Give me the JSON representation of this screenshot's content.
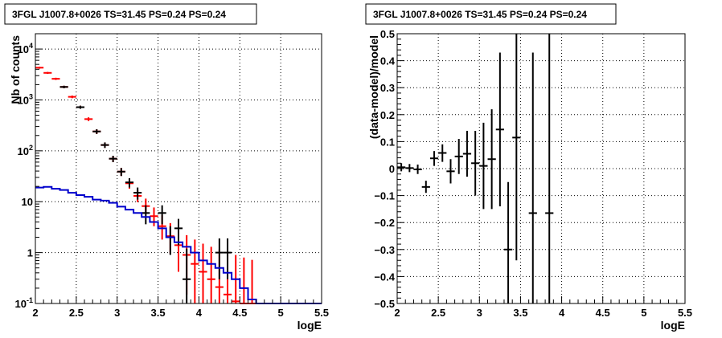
{
  "chart_data": [
    {
      "type": "line",
      "title": "3FGL J1007.8+0026 TS=31.45 PS=0.24 PS=0.24",
      "xlabel": "logE",
      "ylabel": "Nb of counts",
      "xlim": [
        2,
        5.5
      ],
      "ylim": [
        0.1,
        20000
      ],
      "log_y": true,
      "grid": true,
      "x_ticks": [
        "2",
        "2.5",
        "3",
        "3.5",
        "4",
        "4.5",
        "5",
        "5.5"
      ],
      "y_ticks": [
        {
          "value": 0.1,
          "label": "10^-1"
        },
        {
          "value": 1,
          "label": "1"
        },
        {
          "value": 10,
          "label": "10"
        },
        {
          "value": 100,
          "label": "10^2"
        },
        {
          "value": 1000,
          "label": "10^3"
        },
        {
          "value": 10000,
          "label": "10^4"
        }
      ],
      "series": [
        {
          "color": "#ff0000",
          "kind": "errorbar",
          "points": [
            {
              "x": 2.05,
              "y": 4300,
              "lo": 4100,
              "hi": 4500
            },
            {
              "x": 2.15,
              "y": 3400,
              "lo": 3250,
              "hi": 3550
            },
            {
              "x": 2.25,
              "y": 2600,
              "lo": 2470,
              "hi": 2730
            },
            {
              "x": 2.35,
              "y": 1800,
              "lo": 1700,
              "hi": 1900
            },
            {
              "x": 2.45,
              "y": 1150,
              "lo": 1080,
              "hi": 1220
            },
            {
              "x": 2.55,
              "y": 720,
              "lo": 670,
              "hi": 770
            },
            {
              "x": 2.65,
              "y": 420,
              "lo": 385,
              "hi": 455
            },
            {
              "x": 2.75,
              "y": 240,
              "lo": 215,
              "hi": 265
            },
            {
              "x": 2.85,
              "y": 130,
              "lo": 114,
              "hi": 146
            },
            {
              "x": 2.95,
              "y": 70,
              "lo": 60,
              "hi": 80
            },
            {
              "x": 3.05,
              "y": 39,
              "lo": 32,
              "hi": 46
            },
            {
              "x": 3.15,
              "y": 23,
              "lo": 18,
              "hi": 28
            },
            {
              "x": 3.25,
              "y": 13,
              "lo": 9.8,
              "hi": 17
            },
            {
              "x": 3.35,
              "y": 8.2,
              "lo": 5.8,
              "hi": 11.5
            },
            {
              "x": 3.45,
              "y": 5.2,
              "lo": 3.3,
              "hi": 7.7
            },
            {
              "x": 3.55,
              "y": 3.3,
              "lo": 1.8,
              "hi": 5.4
            },
            {
              "x": 3.65,
              "y": 2.1,
              "lo": 0.95,
              "hi": 3.8
            },
            {
              "x": 3.75,
              "y": 1.4,
              "lo": 0.42,
              "hi": 2.8
            },
            {
              "x": 3.85,
              "y": 0.9,
              "lo": 0.15,
              "hi": 2.2
            },
            {
              "x": 3.95,
              "y": 0.6,
              "lo": 0.1,
              "hi": 1.8
            },
            {
              "x": 4.05,
              "y": 0.42,
              "lo": 0.1,
              "hi": 1.5
            },
            {
              "x": 4.15,
              "y": 0.3,
              "lo": 0.1,
              "hi": 1.3
            },
            {
              "x": 4.25,
              "y": 0.21,
              "lo": 0.1,
              "hi": 1.15
            },
            {
              "x": 4.35,
              "y": 0.15,
              "lo": 0.1,
              "hi": 1.0
            },
            {
              "x": 4.45,
              "y": 0.11,
              "lo": 0.1,
              "hi": 0.9
            },
            {
              "x": 4.55,
              "y": 0.1,
              "lo": 0.1,
              "hi": 0.8
            },
            {
              "x": 4.65,
              "y": 0.1,
              "lo": 0.1,
              "hi": 0.72
            }
          ]
        },
        {
          "color": "#000000",
          "kind": "errorbar",
          "points": [
            {
              "x": 2.35,
              "y": 1800,
              "lo": 1700,
              "hi": 1900
            },
            {
              "x": 2.55,
              "y": 720,
              "lo": 670,
              "hi": 770
            },
            {
              "x": 2.75,
              "y": 240,
              "lo": 215,
              "hi": 265
            },
            {
              "x": 2.85,
              "y": 130,
              "lo": 114,
              "hi": 146
            },
            {
              "x": 2.95,
              "y": 70,
              "lo": 60,
              "hi": 80
            },
            {
              "x": 3.05,
              "y": 39,
              "lo": 32,
              "hi": 46
            },
            {
              "x": 3.15,
              "y": 24,
              "lo": 19,
              "hi": 29
            },
            {
              "x": 3.25,
              "y": 15,
              "lo": 11,
              "hi": 19
            },
            {
              "x": 3.35,
              "y": 6,
              "lo": 3.6,
              "hi": 8.5
            },
            {
              "x": 3.55,
              "y": 6,
              "lo": 3.6,
              "hi": 8.5
            },
            {
              "x": 3.65,
              "y": 2,
              "lo": 0.9,
              "hi": 3.3
            },
            {
              "x": 3.75,
              "y": 3,
              "lo": 1.4,
              "hi": 4.6
            },
            {
              "x": 3.85,
              "y": 0.3,
              "lo": 0.1,
              "hi": 1.2
            },
            {
              "x": 4.25,
              "y": 1,
              "lo": 0.3,
              "hi": 1.9
            },
            {
              "x": 4.35,
              "y": 1,
              "lo": 0.3,
              "hi": 1.9
            }
          ]
        },
        {
          "color": "#0000cc",
          "kind": "step",
          "points": [
            {
              "x": 2.05,
              "y": 19
            },
            {
              "x": 2.15,
              "y": 19.5
            },
            {
              "x": 2.25,
              "y": 18
            },
            {
              "x": 2.35,
              "y": 17
            },
            {
              "x": 2.45,
              "y": 15
            },
            {
              "x": 2.55,
              "y": 13.5
            },
            {
              "x": 2.65,
              "y": 12.5
            },
            {
              "x": 2.75,
              "y": 11
            },
            {
              "x": 2.85,
              "y": 10.5
            },
            {
              "x": 2.95,
              "y": 9.5
            },
            {
              "x": 3.05,
              "y": 8
            },
            {
              "x": 3.15,
              "y": 7
            },
            {
              "x": 3.25,
              "y": 6
            },
            {
              "x": 3.35,
              "y": 5
            },
            {
              "x": 3.45,
              "y": 4
            },
            {
              "x": 3.55,
              "y": 3
            },
            {
              "x": 3.65,
              "y": 2
            },
            {
              "x": 3.75,
              "y": 1.6
            },
            {
              "x": 3.85,
              "y": 1.3
            },
            {
              "x": 3.95,
              "y": 1.0
            },
            {
              "x": 4.05,
              "y": 0.7
            },
            {
              "x": 4.15,
              "y": 0.6
            },
            {
              "x": 4.25,
              "y": 0.5
            },
            {
              "x": 4.35,
              "y": 0.4
            },
            {
              "x": 4.45,
              "y": 0.3
            },
            {
              "x": 4.55,
              "y": 0.2
            },
            {
              "x": 4.65,
              "y": 0.12
            },
            {
              "x": 4.75,
              "y": 0.1
            },
            {
              "x": 4.85,
              "y": 0.1
            },
            {
              "x": 4.95,
              "y": 0.1
            },
            {
              "x": 5.05,
              "y": 0.1
            },
            {
              "x": 5.15,
              "y": 0.1
            },
            {
              "x": 5.25,
              "y": 0.1
            },
            {
              "x": 5.35,
              "y": 0.1
            },
            {
              "x": 5.45,
              "y": 0.1
            }
          ]
        }
      ]
    },
    {
      "type": "scatter",
      "title": "3FGL J1007.8+0026 TS=31.45 PS=0.24 PS=0.24",
      "xlabel": "logE",
      "ylabel": "(data-model)/model",
      "xlim": [
        2,
        5.5
      ],
      "ylim": [
        -0.5,
        0.5
      ],
      "grid": true,
      "x_ticks": [
        "2",
        "2.5",
        "3",
        "3.5",
        "4",
        "4.5",
        "5",
        "5.5"
      ],
      "y_ticks": [
        "-0.5",
        "-0.4",
        "-0.3",
        "-0.2",
        "-0.1",
        "0",
        "0.1",
        "0.2",
        "0.3",
        "0.4",
        "0.5"
      ],
      "series": [
        {
          "color": "#000000",
          "kind": "errorbar",
          "points": [
            {
              "x": 2.05,
              "y": 0.005,
              "lo": -0.01,
              "hi": 0.02
            },
            {
              "x": 2.15,
              "y": 0.002,
              "lo": -0.013,
              "hi": 0.017
            },
            {
              "x": 2.25,
              "y": -0.003,
              "lo": -0.02,
              "hi": 0.015
            },
            {
              "x": 2.35,
              "y": -0.068,
              "lo": -0.09,
              "hi": -0.045
            },
            {
              "x": 2.45,
              "y": 0.038,
              "lo": 0.01,
              "hi": 0.065
            },
            {
              "x": 2.55,
              "y": 0.058,
              "lo": 0.025,
              "hi": 0.09
            },
            {
              "x": 2.65,
              "y": -0.01,
              "lo": -0.055,
              "hi": 0.035
            },
            {
              "x": 2.75,
              "y": 0.045,
              "lo": -0.02,
              "hi": 0.11
            },
            {
              "x": 2.85,
              "y": 0.055,
              "lo": -0.03,
              "hi": 0.14
            },
            {
              "x": 2.95,
              "y": 0.02,
              "lo": -0.1,
              "hi": 0.14
            },
            {
              "x": 3.05,
              "y": 0.01,
              "lo": -0.15,
              "hi": 0.17
            },
            {
              "x": 3.15,
              "y": 0.035,
              "lo": -0.15,
              "hi": 0.22
            },
            {
              "x": 3.25,
              "y": 0.145,
              "lo": -0.14,
              "hi": 0.43
            },
            {
              "x": 3.35,
              "y": -0.3,
              "lo": -0.5,
              "hi": -0.05
            },
            {
              "x": 3.45,
              "y": 0.115,
              "lo": -0.34,
              "hi": 0.5
            },
            {
              "x": 3.65,
              "y": -0.165,
              "lo": -0.5,
              "hi": 0.43
            },
            {
              "x": 3.85,
              "y": -0.165,
              "lo": -0.5,
              "hi": 0.5
            }
          ]
        }
      ]
    }
  ]
}
